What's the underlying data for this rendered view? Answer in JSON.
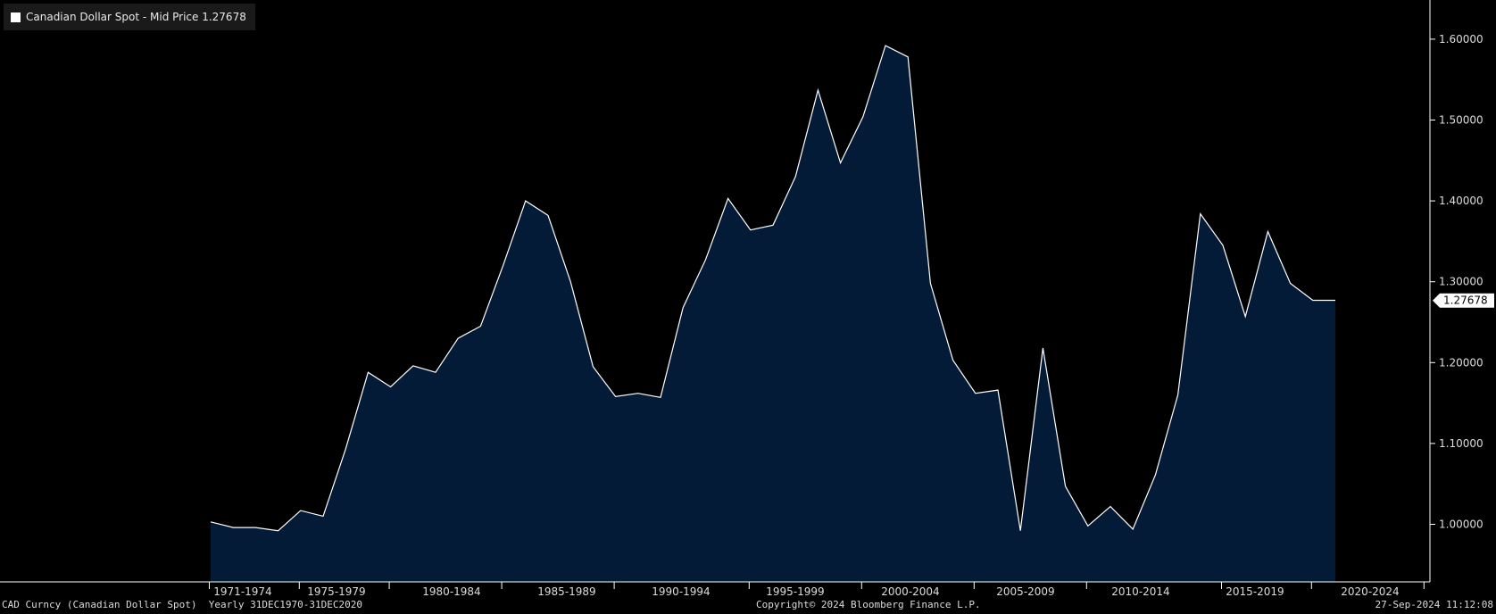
{
  "legend": {
    "label": "Canadian Dollar Spot - Mid Price 1.27678",
    "swatch_color": "#ffffff"
  },
  "footer": {
    "left": "CAD Curncy (Canadian Dollar Spot)  Yearly 31DEC1970-31DEC2020",
    "center": "Copyright© 2024 Bloomberg Finance L.P.",
    "right": "27-Sep-2024 11:12:08"
  },
  "colors": {
    "background": "#000000",
    "area_fill": "#041b38",
    "line": "#ffffff",
    "axis": "#ffffff",
    "text": "#dddddd"
  },
  "chart_data": {
    "type": "area",
    "x": [
      1970,
      1971,
      1972,
      1973,
      1974,
      1975,
      1976,
      1977,
      1978,
      1979,
      1980,
      1981,
      1982,
      1983,
      1984,
      1985,
      1986,
      1987,
      1988,
      1989,
      1990,
      1991,
      1992,
      1993,
      1994,
      1995,
      1996,
      1997,
      1998,
      1999,
      2000,
      2001,
      2002,
      2003,
      2004,
      2005,
      2006,
      2007,
      2008,
      2009,
      2010,
      2011,
      2012,
      2013,
      2014,
      2015,
      2016,
      2017,
      2018,
      2019,
      2020
    ],
    "series": [
      {
        "name": "Canadian Dollar Spot - Mid Price",
        "values": [
          1.003,
          0.996,
          0.996,
          0.992,
          1.017,
          1.01,
          1.093,
          1.188,
          1.17,
          1.196,
          1.188,
          1.23,
          1.245,
          1.32,
          1.4,
          1.382,
          1.3,
          1.195,
          1.158,
          1.162,
          1.157,
          1.268,
          1.327,
          1.403,
          1.364,
          1.37,
          1.43,
          1.537,
          1.447,
          1.504,
          1.592,
          1.578,
          1.298,
          1.203,
          1.162,
          1.166,
          0.992,
          1.218,
          1.047,
          0.998,
          1.022,
          0.994,
          1.061,
          1.16,
          1.384,
          1.345,
          1.257,
          1.362,
          1.298,
          1.277,
          1.277
        ]
      }
    ],
    "last_value": 1.27678,
    "last_value_label": "1.27678",
    "xlim": [
      1970,
      2023
    ],
    "ylim": [
      0.93,
      1.66
    ],
    "y_ticks": [
      1.0,
      1.1,
      1.2,
      1.3,
      1.4,
      1.5,
      1.6
    ],
    "y_tick_labels": [
      "1.00000",
      "1.10000",
      "1.20000",
      "1.30000",
      "1.40000",
      "1.50000",
      "1.60000"
    ],
    "x_tick_labels": [
      {
        "label": "1971-1974",
        "center": 1972.6
      },
      {
        "label": "1975-1979",
        "center": 1975.6
      },
      {
        "label": "1980-1984",
        "center": 1980.6
      },
      {
        "label": "1985-1989",
        "center": 1985.6
      },
      {
        "label": "1990-1994",
        "center": 1990.6
      },
      {
        "label": "1995-1999",
        "center": 1995.6
      },
      {
        "label": "2000-2004",
        "center": 2000.6
      },
      {
        "label": "2005-2009",
        "center": 2005.6
      },
      {
        "label": "2010-2014",
        "center": 2010.6
      },
      {
        "label": "2015-2019",
        "center": 2015.6
      },
      {
        "label": "2020-2024",
        "center": 2020.6
      }
    ],
    "x_tick_marks": [
      1970,
      1974,
      1978,
      1983,
      1988,
      1994,
      1999,
      2004,
      2009,
      2015,
      2019,
      2024
    ],
    "y_axis_position": "right",
    "legend_position": "top-left",
    "grid": false
  }
}
